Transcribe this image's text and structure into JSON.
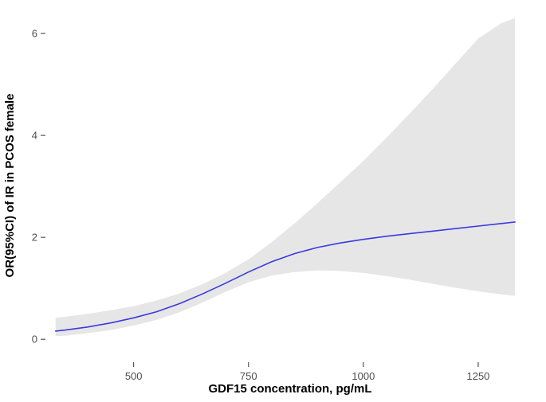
{
  "chart_data": {
    "type": "line",
    "title": "",
    "xlabel": "GDF15 concentration, pg/mL",
    "ylabel": "OR(95%CI) of IR in PCOS female",
    "x": [
      330,
      350,
      400,
      450,
      500,
      550,
      600,
      650,
      700,
      750,
      800,
      850,
      900,
      950,
      1000,
      1050,
      1100,
      1150,
      1200,
      1250,
      1300,
      1330
    ],
    "series": [
      {
        "name": "OR",
        "values": [
          0.16,
          0.18,
          0.24,
          0.32,
          0.42,
          0.54,
          0.7,
          0.89,
          1.1,
          1.32,
          1.52,
          1.68,
          1.8,
          1.89,
          1.96,
          2.02,
          2.07,
          2.12,
          2.17,
          2.22,
          2.27,
          2.3
        ]
      }
    ],
    "ribbon": {
      "name": "95% CI",
      "lower": [
        0.06,
        0.07,
        0.12,
        0.18,
        0.27,
        0.38,
        0.53,
        0.72,
        0.93,
        1.12,
        1.25,
        1.32,
        1.35,
        1.34,
        1.3,
        1.24,
        1.17,
        1.09,
        1.01,
        0.94,
        0.88,
        0.85
      ],
      "upper": [
        0.42,
        0.44,
        0.5,
        0.57,
        0.65,
        0.76,
        0.9,
        1.08,
        1.3,
        1.57,
        1.9,
        2.27,
        2.67,
        3.08,
        3.5,
        3.95,
        4.42,
        4.9,
        5.4,
        5.9,
        6.2,
        6.3
      ]
    },
    "xlim": [
      308,
      1375
    ],
    "ylim": [
      -0.45,
      6.5
    ],
    "xticks": [
      500,
      750,
      1000,
      1250
    ],
    "yticks": [
      0,
      2,
      4,
      6
    ],
    "grid": false,
    "legend": "none",
    "colors": {
      "line": "#3a3adf",
      "ribbon": "#e6e6e6",
      "tick": "#333333",
      "tick_text": "#4d4d4d",
      "axis_title": "#000000",
      "background": "#ffffff"
    }
  }
}
